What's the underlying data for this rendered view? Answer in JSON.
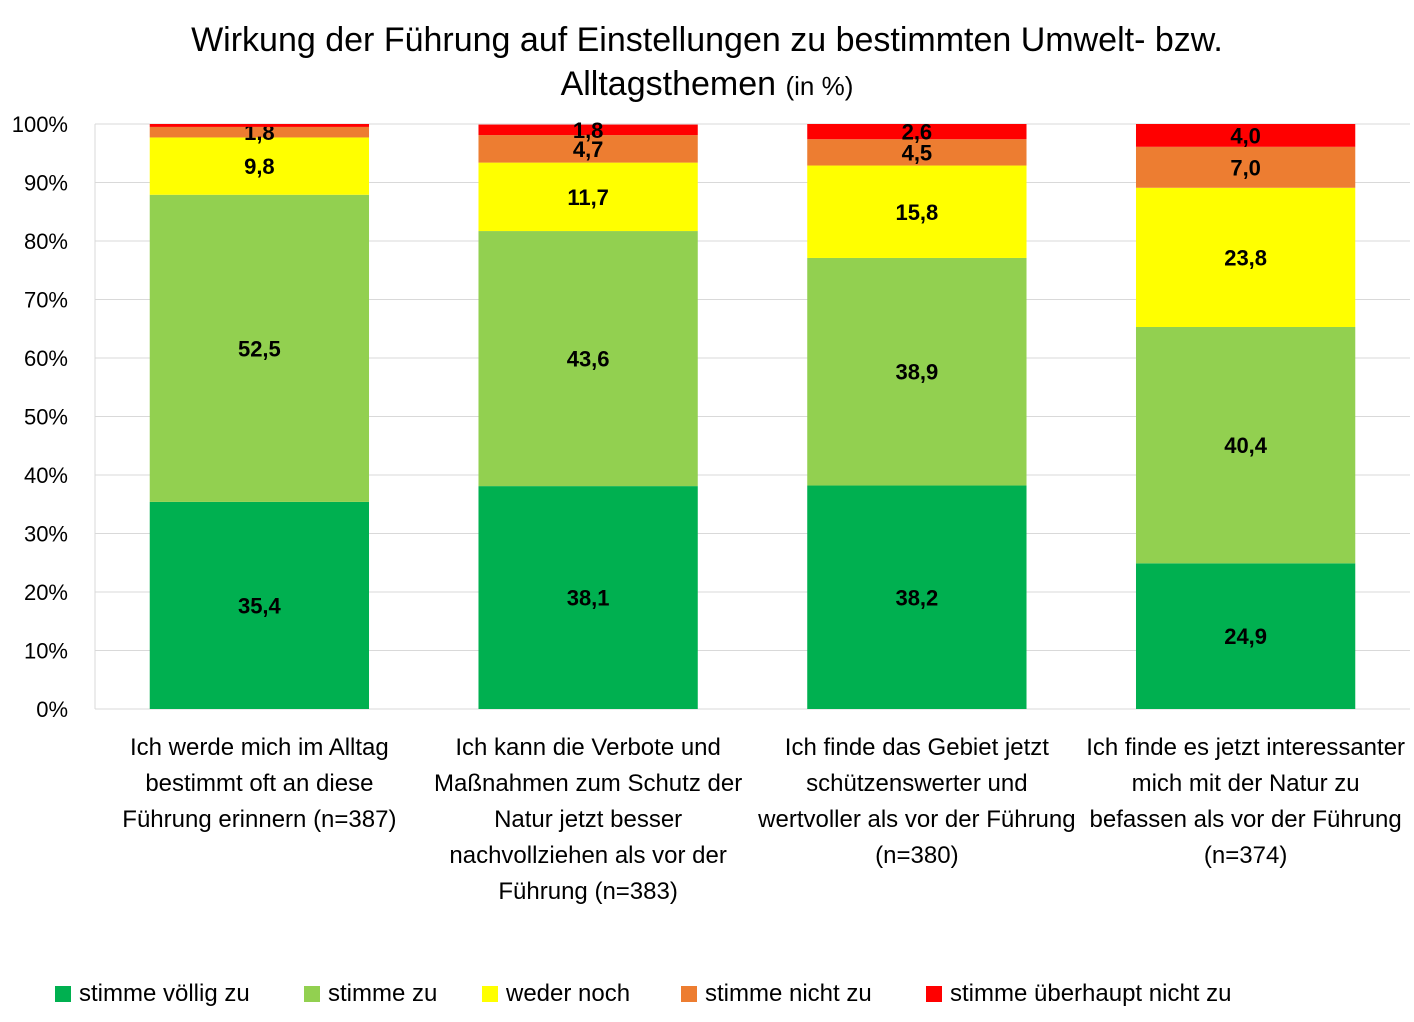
{
  "chart_data": {
    "type": "bar",
    "stacked": true,
    "title": "Wirkung der Führung auf Einstellungen zu bestimmten Umwelt- bzw. Alltagsthemen",
    "title_line1": "Wirkung der Führung auf Einstellungen zu bestimmten Umwelt- bzw.",
    "title_line2": "Alltagsthemen",
    "title_unit": "(in %)",
    "categories": [
      "Ich werde mich im Alltag bestimmt oft an diese Führung erinnern (n=387)",
      "Ich kann die Verbote und Maßnahmen zum Schutz der Natur jetzt besser nachvollziehen als vor der Führung (n=383)",
      "Ich finde das Gebiet jetzt schützenswerter und wertvoller als vor der Führung (n=380)",
      "Ich finde es jetzt interessanter mich mit der Natur zu befassen als vor der Führung (n=374)"
    ],
    "series": [
      {
        "name": "stimme völlig zu",
        "color": "#00B050",
        "values": [
          35.4,
          38.1,
          38.2,
          24.9
        ],
        "labels": [
          "35,4",
          "38,1",
          "38,2",
          "24,9"
        ]
      },
      {
        "name": "stimme zu",
        "color": "#92D050",
        "values": [
          52.5,
          43.6,
          38.9,
          40.4
        ],
        "labels": [
          "52,5",
          "43,6",
          "38,9",
          "40,4"
        ]
      },
      {
        "name": "weder noch",
        "color": "#FFFF00",
        "values": [
          9.8,
          11.7,
          15.8,
          23.8
        ],
        "labels": [
          "9,8",
          "11,7",
          "15,8",
          "23,8"
        ]
      },
      {
        "name": "stimme nicht zu",
        "color": "#ED7D31",
        "values": [
          1.8,
          4.7,
          4.5,
          7.0
        ],
        "labels": [
          "1,8",
          "4,7",
          "4,5",
          "7,0"
        ]
      },
      {
        "name": "stimme überhaupt nicht zu",
        "color": "#FF0000",
        "values": [
          0.5,
          1.8,
          2.6,
          4.0
        ],
        "labels": [
          "",
          "1,8",
          "2,6",
          "4,0"
        ]
      }
    ],
    "y_ticks": [
      "0%",
      "10%",
      "20%",
      "30%",
      "40%",
      "50%",
      "60%",
      "70%",
      "80%",
      "90%",
      "100%"
    ],
    "ylim": [
      0,
      100
    ],
    "grid": true,
    "legend_position": "bottom"
  }
}
